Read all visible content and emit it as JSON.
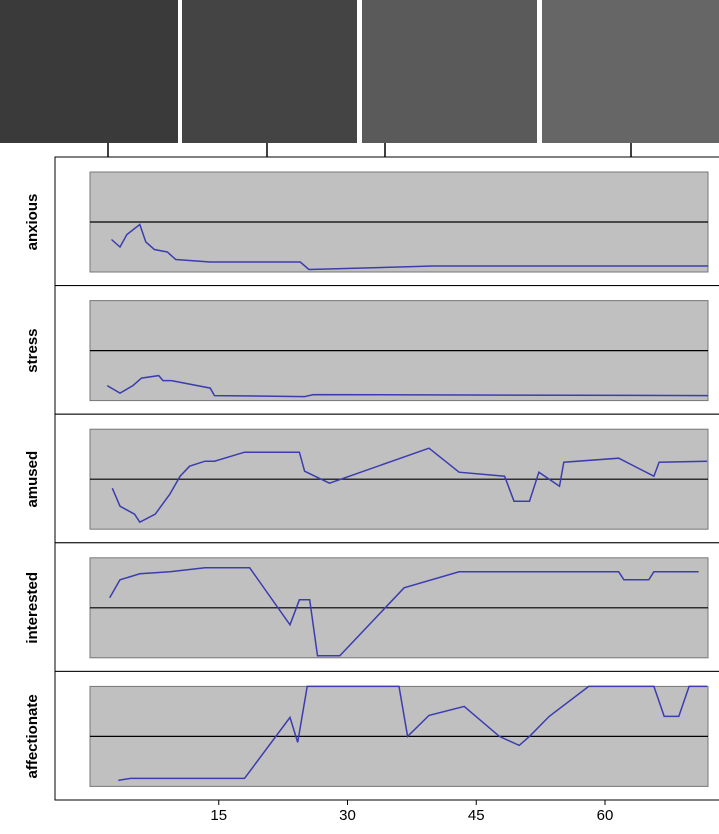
{
  "chart_data": [
    {
      "type": "line",
      "ylabel": "anxious",
      "color": "#3c3cb0",
      "xlim": [
        0,
        72
      ],
      "ylim": [
        -1,
        1
      ],
      "x": [
        2.5,
        3.5,
        4.3,
        5.8,
        6.5,
        7.5,
        9,
        10,
        14,
        24.5,
        25.5,
        40,
        72
      ],
      "values": [
        -0.35,
        -0.5,
        -0.25,
        -0.05,
        -0.4,
        -0.55,
        -0.6,
        -0.75,
        -0.8,
        -0.8,
        -0.95,
        -0.88,
        -0.88
      ]
    },
    {
      "type": "line",
      "ylabel": "stress",
      "color": "#3c3cb0",
      "xlim": [
        0,
        72
      ],
      "ylim": [
        -1,
        1
      ],
      "x": [
        2,
        3.5,
        5,
        6,
        8,
        8.5,
        9.5,
        14,
        14.5,
        25,
        26,
        72
      ],
      "values": [
        -0.7,
        -0.85,
        -0.7,
        -0.55,
        -0.5,
        -0.6,
        -0.6,
        -0.75,
        -0.9,
        -0.92,
        -0.88,
        -0.9
      ]
    },
    {
      "type": "line",
      "ylabel": "amused",
      "color": "#3c3cb0",
      "xlim": [
        0,
        72
      ],
      "ylim": [
        -1,
        1
      ],
      "x": [
        2.6,
        3.5,
        5.2,
        5.8,
        7.6,
        9.3,
        10.5,
        11.6,
        13.4,
        14.5,
        18,
        24.4,
        25,
        26.2,
        27.9,
        39.5,
        43,
        48.3,
        49.4,
        51.2,
        52.3,
        54.7,
        55.2,
        61.6,
        65.7,
        66.3,
        71.9
      ],
      "values": [
        -0.18,
        -0.54,
        -0.7,
        -0.86,
        -0.7,
        -0.3,
        0.06,
        0.26,
        0.36,
        0.36,
        0.54,
        0.54,
        0.16,
        0.06,
        -0.08,
        0.62,
        0.14,
        0.06,
        -0.44,
        -0.44,
        0.14,
        -0.14,
        0.34,
        0.42,
        0.06,
        0.34,
        0.36
      ]
    },
    {
      "type": "line",
      "ylabel": "interested",
      "color": "#3c3cb0",
      "xlim": [
        0,
        72
      ],
      "ylim": [
        -1,
        1
      ],
      "x": [
        2.3,
        3.5,
        5.8,
        9.3,
        13.4,
        18.6,
        23.3,
        24.4,
        25.6,
        26.5,
        29.1,
        36.6,
        43,
        61.6,
        62.2,
        65.1,
        65.7,
        70.9
      ],
      "values": [
        0.2,
        0.56,
        0.68,
        0.72,
        0.8,
        0.8,
        -0.34,
        0.16,
        0.16,
        -0.96,
        -0.96,
        0.4,
        0.72,
        0.72,
        0.56,
        0.56,
        0.72,
        0.72
      ]
    },
    {
      "type": "line",
      "ylabel": "affectionate",
      "color": "#3c3cb0",
      "xlim": [
        0,
        72
      ],
      "ylim": [
        -1,
        1
      ],
      "x": [
        3.3,
        4.7,
        18,
        23.3,
        24.2,
        25.3,
        36,
        37,
        39.5,
        43.6,
        47.7,
        50,
        51.2,
        53.5,
        58.1,
        65.7,
        66.9,
        68.6,
        69.8,
        71.9
      ],
      "values": [
        -0.88,
        -0.84,
        -0.84,
        0.38,
        -0.12,
        1,
        1,
        0,
        0.42,
        0.6,
        0,
        -0.18,
        0,
        0.4,
        1,
        1,
        0.4,
        0.4,
        1,
        1
      ],
      "xticks": [
        15,
        30,
        45,
        60
      ]
    }
  ]
}
